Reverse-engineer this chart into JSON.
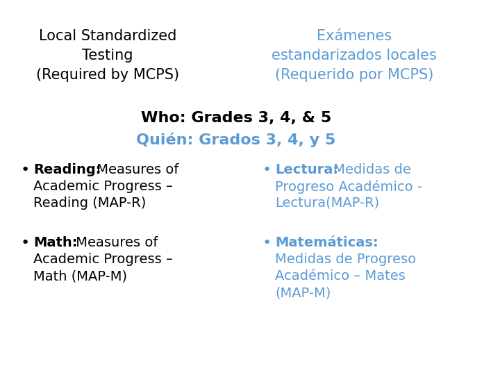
{
  "bg_color": "#ffffff",
  "blue_color": "#5B9BD5",
  "black_color": "#000000",
  "title_left_lines": [
    "Local Standardized",
    "Testing",
    "(Required by MCPS)"
  ],
  "title_right_lines": [
    "Exámenes",
    "estandarizados locales",
    "(Requerido por MCPS)"
  ],
  "who_line1": "Who: Grades 3, 4, & 5",
  "who_line2": "Quién: Grados 3, 4, y 5",
  "title_fontsize": 15,
  "who_fontsize": 16,
  "bullet_fontsize": 14
}
